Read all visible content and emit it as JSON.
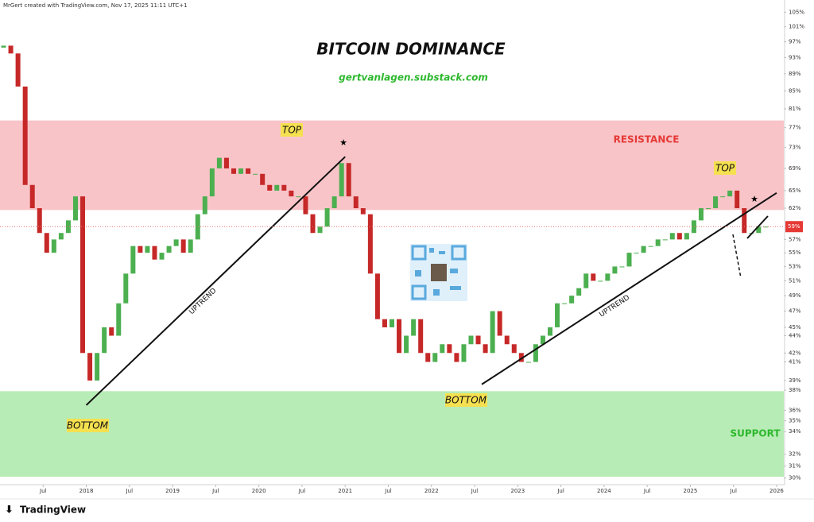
{
  "chart_data": {
    "type": "candlestick",
    "title": "BITCOIN DOMINANCE",
    "subtitle": "gertvanlagen.substack.com",
    "watermark": "MrGert created with TradingView.com, Nov 17, 2025 11:11 UTC+1",
    "brand": "TradingView",
    "log_scale": true,
    "up_color": "#4caf50",
    "down_color": "#c62828",
    "x": [
      "2017-01",
      "2017-02",
      "2017-03",
      "2017-04",
      "2017-05",
      "2017-06",
      "2017-07",
      "2017-08",
      "2017-09",
      "2017-10",
      "2017-11",
      "2017-12",
      "2018-01",
      "2018-02",
      "2018-03",
      "2018-04",
      "2018-05",
      "2018-06",
      "2018-07",
      "2018-08",
      "2018-09",
      "2018-10",
      "2018-11",
      "2018-12",
      "2019-01",
      "2019-02",
      "2019-03",
      "2019-04",
      "2019-05",
      "2019-06",
      "2019-07",
      "2019-08",
      "2019-09",
      "2019-10",
      "2019-11",
      "2019-12",
      "2020-01",
      "2020-02",
      "2020-03",
      "2020-04",
      "2020-05",
      "2020-06",
      "2020-07",
      "2020-08",
      "2020-09",
      "2020-10",
      "2020-11",
      "2020-12",
      "2021-01",
      "2021-02",
      "2021-03",
      "2021-04",
      "2021-05",
      "2021-06",
      "2021-07",
      "2021-08",
      "2021-09",
      "2021-10",
      "2021-11",
      "2021-12",
      "2022-01",
      "2022-02",
      "2022-03",
      "2022-04",
      "2022-05",
      "2022-06",
      "2022-07",
      "2022-08",
      "2022-09",
      "2022-10",
      "2022-11",
      "2022-12",
      "2023-01",
      "2023-02",
      "2023-03",
      "2023-04",
      "2023-05",
      "2023-06",
      "2023-07",
      "2023-08",
      "2023-09",
      "2023-10",
      "2023-11",
      "2023-12",
      "2024-01",
      "2024-02",
      "2024-03",
      "2024-04",
      "2024-05",
      "2024-06",
      "2024-07",
      "2024-08",
      "2024-09",
      "2024-10",
      "2024-11",
      "2024-12",
      "2025-01",
      "2025-02",
      "2025-03",
      "2025-04",
      "2025-05",
      "2025-06",
      "2025-07",
      "2025-08",
      "2025-09",
      "2025-10",
      "2025-11"
    ],
    "open": [
      95.5,
      96,
      94,
      86,
      66,
      62,
      58,
      55,
      57,
      58,
      60,
      64,
      42,
      39,
      42,
      45,
      44,
      48,
      52,
      56,
      55,
      56,
      54,
      55,
      56,
      57,
      55,
      57,
      61,
      64,
      69,
      71,
      69,
      68,
      69,
      68,
      68,
      66,
      65,
      66,
      65,
      64,
      64,
      61,
      58,
      59,
      62,
      64,
      70,
      64,
      62,
      61,
      52,
      46,
      45,
      46,
      42,
      44,
      46,
      42,
      41,
      42,
      43,
      42,
      41,
      43,
      44,
      43,
      42,
      47,
      44,
      43,
      42,
      41,
      41,
      43,
      44,
      45,
      48,
      48,
      49,
      50,
      52,
      51,
      51,
      52,
      53,
      53,
      55,
      55,
      56,
      56,
      57,
      57,
      58,
      57,
      58,
      60,
      62,
      62,
      64,
      64,
      65,
      62,
      58,
      58,
      59
    ],
    "close": [
      96,
      94,
      86,
      66,
      62,
      58,
      55,
      57,
      58,
      60,
      64,
      42,
      39,
      42,
      45,
      44,
      48,
      52,
      56,
      55,
      56,
      54,
      55,
      56,
      57,
      55,
      57,
      61,
      64,
      69,
      71,
      69,
      68,
      69,
      68,
      68,
      66,
      65,
      66,
      65,
      64,
      64,
      61,
      58,
      59,
      62,
      64,
      70,
      64,
      62,
      61,
      52,
      46,
      45,
      46,
      42,
      44,
      46,
      42,
      41,
      42,
      43,
      42,
      41,
      43,
      44,
      43,
      42,
      47,
      44,
      43,
      42,
      41,
      41,
      43,
      44,
      45,
      48,
      48,
      49,
      50,
      52,
      51,
      51,
      52,
      53,
      53,
      55,
      55,
      56,
      56,
      57,
      57,
      58,
      57,
      58,
      60,
      62,
      62,
      64,
      64,
      65,
      62,
      58,
      58,
      59,
      59
    ],
    "xlim": [
      "2017-01",
      "2026-02"
    ],
    "xticks": [
      {
        "value": "2017-07",
        "label": "Jul"
      },
      {
        "value": "2018-01",
        "label": "2018"
      },
      {
        "value": "2018-07",
        "label": "Jul"
      },
      {
        "value": "2019-01",
        "label": "2019"
      },
      {
        "value": "2019-07",
        "label": "Jul"
      },
      {
        "value": "2020-01",
        "label": "2020"
      },
      {
        "value": "2020-07",
        "label": "Jul"
      },
      {
        "value": "2021-01",
        "label": "2021"
      },
      {
        "value": "2021-07",
        "label": "Jul"
      },
      {
        "value": "2022-01",
        "label": "2022"
      },
      {
        "value": "2022-07",
        "label": "Jul"
      },
      {
        "value": "2023-01",
        "label": "2023"
      },
      {
        "value": "2023-07",
        "label": "Jul"
      },
      {
        "value": "2024-01",
        "label": "2024"
      },
      {
        "value": "2024-07",
        "label": "Jul"
      },
      {
        "value": "2025-01",
        "label": "2025"
      },
      {
        "value": "2025-07",
        "label": "Jul"
      },
      {
        "value": "2026-01",
        "label": "2026"
      }
    ],
    "ylim": [
      29.6,
      106.7
    ],
    "yticks": [
      {
        "value": 30,
        "label": "30%"
      },
      {
        "value": 31,
        "label": "31%"
      },
      {
        "value": 32,
        "label": "32%"
      },
      {
        "value": 34,
        "label": "34%"
      },
      {
        "value": 35,
        "label": "35%"
      },
      {
        "value": 36,
        "label": "36%"
      },
      {
        "value": 38,
        "label": "38%"
      },
      {
        "value": 39,
        "label": "39%"
      },
      {
        "value": 41,
        "label": "41%"
      },
      {
        "value": 42,
        "label": "42%"
      },
      {
        "value": 44,
        "label": "44%"
      },
      {
        "value": 45,
        "label": "45%"
      },
      {
        "value": 47,
        "label": "47%"
      },
      {
        "value": 49,
        "label": "49%"
      },
      {
        "value": 51,
        "label": "51%"
      },
      {
        "value": 53,
        "label": "53%"
      },
      {
        "value": 55,
        "label": "55%"
      },
      {
        "value": 57,
        "label": "57%"
      },
      {
        "value": 62,
        "label": "62%"
      },
      {
        "value": 65,
        "label": "65%"
      },
      {
        "value": 69,
        "label": "69%"
      },
      {
        "value": 73,
        "label": "73%"
      },
      {
        "value": 77,
        "label": "77%"
      },
      {
        "value": 81,
        "label": "81%"
      },
      {
        "value": 85,
        "label": "85%"
      },
      {
        "value": 89,
        "label": "89%"
      },
      {
        "value": 93,
        "label": "93%"
      },
      {
        "value": 97,
        "label": "97%"
      },
      {
        "value": 101,
        "label": "101%"
      },
      {
        "value": 105,
        "label": "105%"
      }
    ],
    "last_value": {
      "value": 59,
      "label": "59%"
    },
    "zones": [
      {
        "label": "RESISTANCE",
        "from": 61.7,
        "to": 78.5,
        "color": "#f8c4c8"
      },
      {
        "label": "SUPPORT",
        "from": 30.1,
        "to": 37.9,
        "color": "#b8ecb6"
      }
    ],
    "trendlines": [
      {
        "from": [
          "2018-01",
          36.5
        ],
        "to": [
          "2021-01",
          71.2
        ],
        "label": "UPTREND"
      },
      {
        "from": [
          "2022-08",
          38.6
        ],
        "to": [
          "2026-01",
          64.6
        ],
        "label": "UPTREND"
      }
    ],
    "annotations": [
      "TOP",
      "TOP",
      "BOTTOM",
      "BOTTOM"
    ]
  }
}
